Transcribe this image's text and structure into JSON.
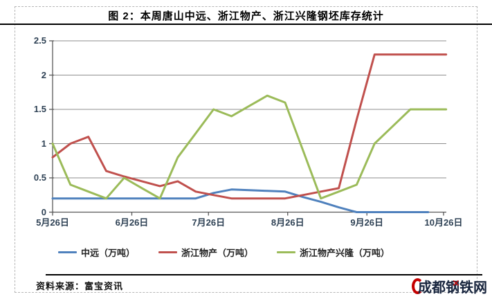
{
  "header": {
    "title": "图 2：本周唐山中远、浙江物产、浙江兴隆钢坯库存统计"
  },
  "footer": {
    "source_label": "资料来源：富宝资讯",
    "logo_text": "成都钢铁网",
    "logo_accent_color": "#c40000",
    "logo_text_color": "#17243d"
  },
  "chart_data": {
    "type": "line",
    "title": "图 2：本周唐山中远、浙江物产、浙江兴隆钢坯库存统计",
    "unit": "万吨",
    "grid": true,
    "legend_position": "bottom",
    "x_axis": {
      "tick_labels": [
        "5月26日",
        "6月26日",
        "7月26日",
        "8月26日",
        "9月26日",
        "10月26日"
      ],
      "tick_day_offsets": [
        0,
        31,
        61,
        92,
        123,
        153
      ],
      "range_days": [
        0,
        154.5
      ]
    },
    "y_axis": {
      "ticks": [
        "0",
        "0.5",
        "1",
        "1.5",
        "2",
        "2.5"
      ],
      "tick_values": [
        0,
        0.5,
        1,
        1.5,
        2,
        2.5
      ],
      "lim": [
        0,
        2.5
      ]
    },
    "colors": {
      "grid": "#8e8e8e",
      "axis": "#595959"
    },
    "series": [
      {
        "name": "中远（万吨）",
        "color": "#4F81BD",
        "day_offsets": [
          0,
          7,
          14,
          21,
          28,
          35,
          42,
          49,
          56,
          63,
          70,
          77,
          84,
          91,
          98,
          105,
          112,
          119,
          126,
          133,
          140,
          147
        ],
        "values": [
          0.2,
          0.2,
          0.2,
          0.2,
          0.2,
          0.2,
          0.2,
          0.2,
          0.2,
          0.28,
          0.33,
          0.32,
          0.31,
          0.3,
          0.22,
          0.15,
          0.07,
          0,
          0,
          0,
          0,
          0
        ]
      },
      {
        "name": "浙江物产（万吨）",
        "color": "#C0504D",
        "day_offsets": [
          0,
          7,
          14,
          21,
          28,
          35,
          42,
          49,
          56,
          63,
          70,
          77,
          84,
          91,
          98,
          105,
          112,
          119,
          126,
          133,
          140,
          147,
          154
        ],
        "values": [
          0.8,
          1.0,
          1.1,
          0.6,
          0.52,
          0.45,
          0.38,
          0.45,
          0.3,
          0.25,
          0.2,
          0.2,
          0.2,
          0.2,
          0.25,
          0.3,
          0.35,
          1.35,
          2.3,
          2.3,
          2.3,
          2.3,
          2.3
        ]
      },
      {
        "name": "浙江物产兴隆（万吨）",
        "color": "#9BBB59",
        "day_offsets": [
          0,
          7,
          14,
          21,
          28,
          35,
          42,
          49,
          56,
          63,
          70,
          77,
          84,
          91,
          98,
          105,
          112,
          119,
          126,
          133,
          140,
          147,
          154
        ],
        "values": [
          1.0,
          0.4,
          0.3,
          0.2,
          0.5,
          0.35,
          0.2,
          0.8,
          1.15,
          1.5,
          1.4,
          1.55,
          1.7,
          1.6,
          0.9,
          0.2,
          0.3,
          0.4,
          1.0,
          1.25,
          1.5,
          1.5,
          1.5
        ]
      }
    ]
  }
}
